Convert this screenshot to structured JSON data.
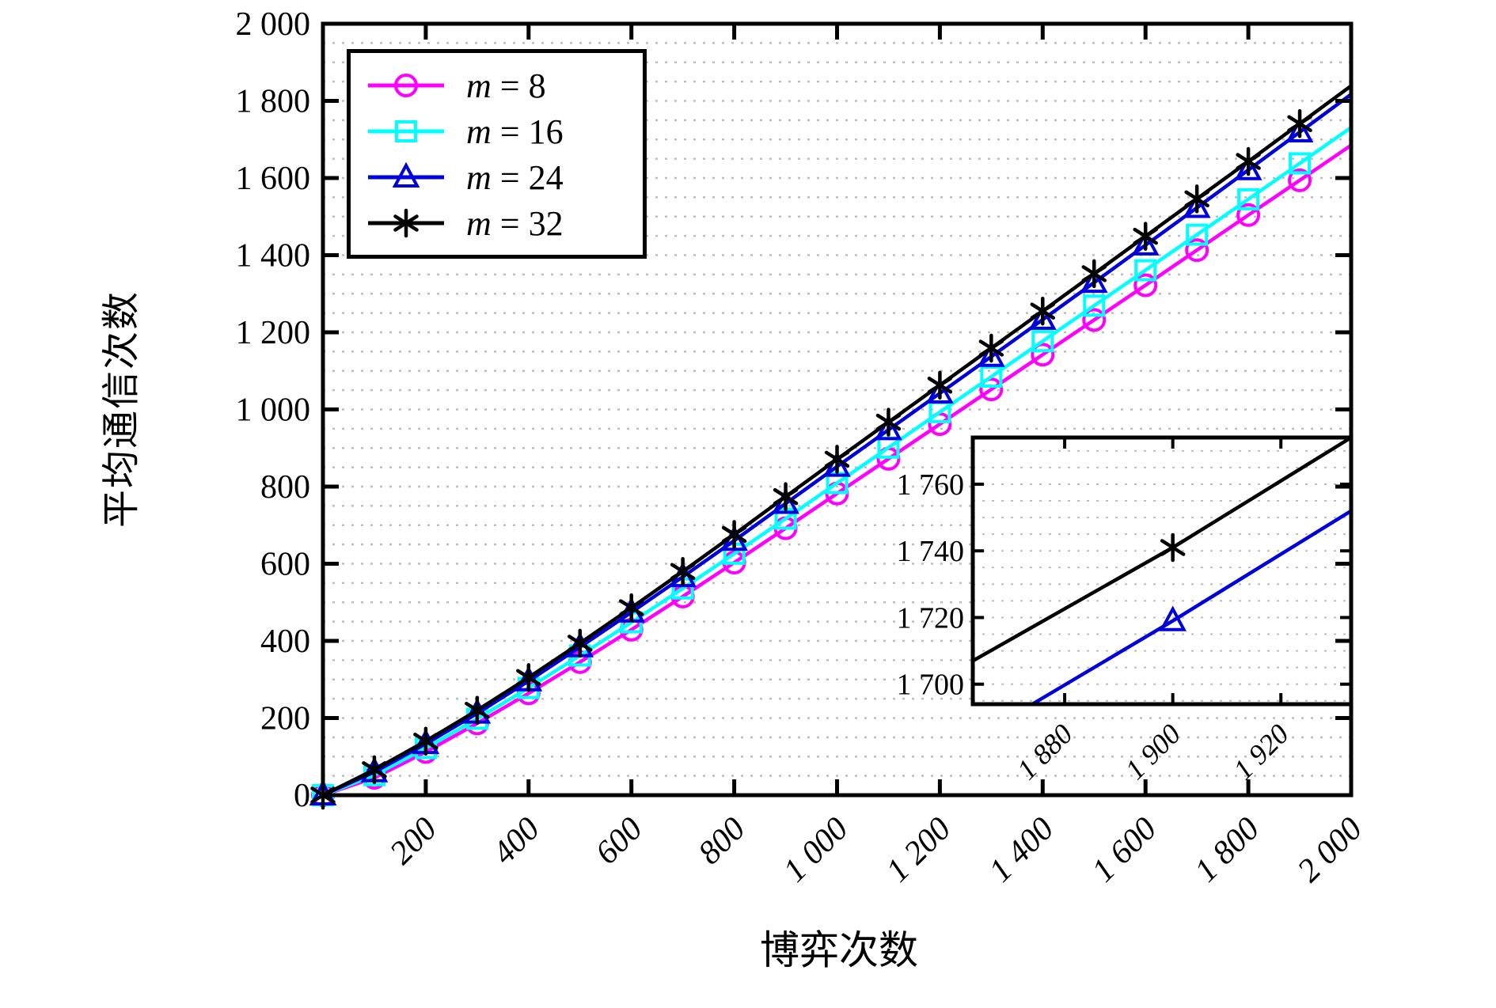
{
  "figure": {
    "x_axis_title": "博弈次数",
    "y_axis_title": "平均通信次数"
  },
  "legend": {
    "position": "top-left",
    "items": [
      {
        "label": "m = 8",
        "var": "m",
        "rest": " = 8"
      },
      {
        "label": "m = 16",
        "var": "m",
        "rest": " = 16"
      },
      {
        "label": "m = 24",
        "var": "m",
        "rest": " = 24"
      },
      {
        "label": "m = 32",
        "var": "m",
        "rest": " = 32"
      }
    ]
  },
  "chart_data": {
    "type": "line",
    "title": "",
    "xlabel": "博弈次数",
    "ylabel": "平均通信次数",
    "xlim": [
      0,
      2000
    ],
    "ylim": [
      0,
      2000
    ],
    "grid": {
      "horizontal_minor_step": 50,
      "style": "dotted",
      "color": "#bdbdbd",
      "vertical": false
    },
    "legend_position": "top-left",
    "x": [
      0,
      100,
      200,
      300,
      400,
      500,
      600,
      700,
      800,
      900,
      1000,
      1100,
      1200,
      1300,
      1400,
      1500,
      1600,
      1700,
      1800,
      1900,
      2000
    ],
    "series": [
      {
        "name": "m = 8",
        "color": "#FF00FF",
        "marker": "circle",
        "values": [
          0,
          45,
          112,
          186,
          264,
          345,
          429,
          515,
          603,
          692,
          782,
          872,
          962,
          1052,
          1142,
          1232,
          1322,
          1413,
          1504,
          1594,
          1685
        ]
      },
      {
        "name": "m = 16",
        "color": "#00FFFF",
        "marker": "square",
        "values": [
          0,
          52,
          122,
          198,
          278,
          362,
          448,
          536,
          626,
          717,
          809,
          901,
          993,
          1085,
          1177,
          1269,
          1361,
          1453,
          1545,
          1638,
          1731
        ]
      },
      {
        "name": "m = 24",
        "color": "#0000DD",
        "marker": "triangle",
        "values": [
          0,
          60,
          133,
          212,
          296,
          384,
          474,
          566,
          660,
          756,
          852,
          947,
          1042,
          1137,
          1233,
          1329,
          1426,
          1523,
          1621,
          1719,
          1817
        ]
      },
      {
        "name": "m = 32",
        "color": "#000000",
        "marker": "asterisk",
        "values": [
          0,
          66,
          140,
          220,
          305,
          394,
          486,
          580,
          676,
          774,
          871,
          967,
          1063,
          1159,
          1255,
          1352,
          1449,
          1546,
          1643,
          1741,
          1839
        ]
      }
    ],
    "x_ticks": {
      "values": [
        200,
        400,
        600,
        800,
        1000,
        1200,
        1400,
        1600,
        1800,
        2000
      ],
      "labels": [
        "200",
        "400",
        "600",
        "800",
        "1 000",
        "1 200",
        "1 400",
        "1 600",
        "1 800",
        "2 000"
      ]
    },
    "y_ticks": {
      "values": [
        0,
        200,
        400,
        600,
        800,
        1000,
        1200,
        1400,
        1600,
        1800,
        2000
      ],
      "labels": [
        "0",
        "200",
        "400",
        "600",
        "800",
        "1 000",
        "1 200",
        "1 400",
        "1 600",
        "1 800",
        "2 000"
      ]
    },
    "inset": {
      "xlim": [
        1863,
        1933
      ],
      "ylim": [
        1694,
        1774
      ],
      "grid": {
        "horizontal_minor_step": 5,
        "style": "dotted"
      },
      "x_ticks": {
        "values": [
          1880,
          1900,
          1920
        ],
        "labels": [
          "1 880",
          "1 900",
          "1 920"
        ]
      },
      "y_ticks": {
        "values": [
          1700,
          1720,
          1740,
          1760
        ],
        "labels": [
          "1 700",
          "1 720",
          "1 740",
          "1 760"
        ]
      },
      "series": [
        {
          "name": "m = 32",
          "color": "#000000",
          "marker": "asterisk",
          "points": [
            [
              1863,
              1707
            ],
            [
              1900,
              1741
            ],
            [
              1933,
              1774
            ]
          ],
          "marker_at": [
            [
              1900,
              1741
            ]
          ]
        },
        {
          "name": "m = 24",
          "color": "#0000DD",
          "marker": "triangle",
          "points": [
            [
              1874,
              1694
            ],
            [
              1900,
              1719
            ],
            [
              1933,
              1752
            ]
          ],
          "marker_at": [
            [
              1900,
              1719
            ]
          ]
        }
      ]
    }
  }
}
